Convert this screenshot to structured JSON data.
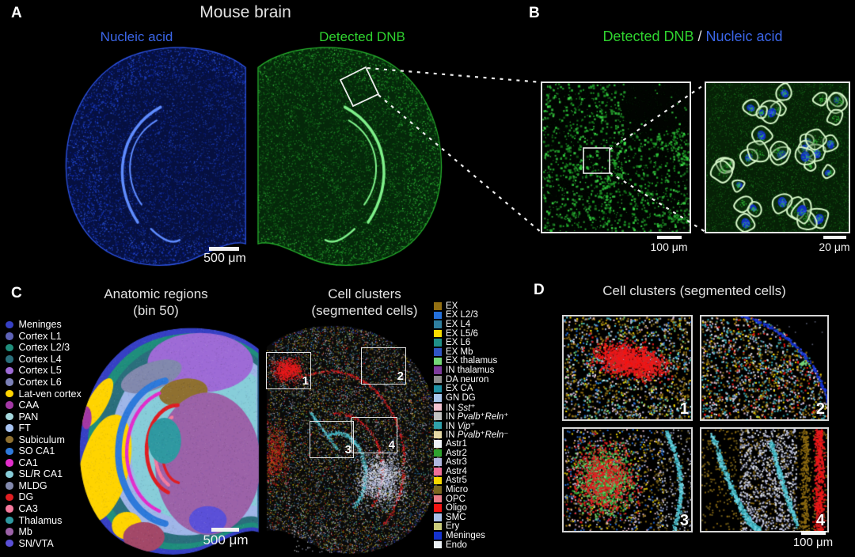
{
  "figure": {
    "background": "#000000"
  },
  "panels": {
    "a": {
      "label": "A",
      "title": "Mouse brain",
      "stain_left": "Nucleic acid",
      "stain_right": "Detected DNB",
      "scale_bar": "500 μm",
      "colors": {
        "nucleic_acid_label": "#3B66E8",
        "detected_dnb_label": "#2FD32F"
      }
    },
    "b": {
      "label": "B",
      "title_parts": {
        "green": "Detected DNB",
        "separator": " / ",
        "blue": "Nucleic acid"
      },
      "scale_bar_left": "100 μm",
      "scale_bar_right": "20 μm"
    },
    "c": {
      "label": "C",
      "left_title": "Anatomic regions",
      "left_subtitle": "(bin 50)",
      "right_title": "Cell clusters",
      "right_subtitle": "(segmented cells)",
      "scale_bar": "500 μm",
      "roi_labels": [
        "1",
        "2",
        "3",
        "4"
      ],
      "anatomic_legend": [
        {
          "label": "Meninges",
          "color": "#3640C4"
        },
        {
          "label": "Cortex L1",
          "color": "#5E63B8"
        },
        {
          "label": "Cortex L2/3",
          "color": "#1F8E7C"
        },
        {
          "label": "Cortex L4",
          "color": "#2A6F7C"
        },
        {
          "label": "Cortex L5",
          "color": "#9E6BD6"
        },
        {
          "label": "Cortex L6",
          "color": "#7B80B8"
        },
        {
          "label": "Lat-ven cortex",
          "color": "#FFD400"
        },
        {
          "label": "CAA",
          "color": "#A338A5"
        },
        {
          "label": "PAN",
          "color": "#A5D8DE"
        },
        {
          "label": "FT",
          "color": "#A8C4F2"
        },
        {
          "label": "Subiculum",
          "color": "#8F7030"
        },
        {
          "label": "SO CA1",
          "color": "#2E7ADB"
        },
        {
          "label": "CA1",
          "color": "#E32ECC"
        },
        {
          "label": "SL/R CA1",
          "color": "#87CDD9"
        },
        {
          "label": "MLDG",
          "color": "#8289AD"
        },
        {
          "label": "DG",
          "color": "#E01E22"
        },
        {
          "label": "CA3",
          "color": "#F57A9E"
        },
        {
          "label": "Thalamus",
          "color": "#2F99A1"
        },
        {
          "label": "Mb",
          "color": "#9C62A8"
        },
        {
          "label": "SN/VTA",
          "color": "#5B50D8"
        }
      ],
      "cluster_legend": [
        {
          "label": "EX",
          "color": "#926F12"
        },
        {
          "label": "EX L2/3",
          "color": "#2470DB"
        },
        {
          "label": "EX L4",
          "color": "#2F7E9E"
        },
        {
          "label": "EX L5/6",
          "color": "#F7DC00"
        },
        {
          "label": "EX L6",
          "color": "#1F8F87"
        },
        {
          "label": "EX Mb",
          "color": "#3055C4"
        },
        {
          "label": "EX thalamus",
          "color": "#74D678"
        },
        {
          "label": "IN thalamus",
          "color": "#7D3B9C"
        },
        {
          "label": "DA neuron",
          "color": "#8E8E8E"
        },
        {
          "label": "EX CA",
          "color": "#1F8FA3"
        },
        {
          "label": "GN DG",
          "color": "#A8C6ED"
        },
        {
          "label": "IN Sst⁺",
          "color": "#F4C4D1"
        },
        {
          "label": "IN Pvalb⁺Reln⁺",
          "color": "#C2C2C2"
        },
        {
          "label": "IN Vip⁺",
          "color": "#2FA0AB"
        },
        {
          "label": "IN Pvalb⁺Reln⁻",
          "color": "#E5D9A6"
        },
        {
          "label": "Astr1",
          "color": "#EFF3F8"
        },
        {
          "label": "Astr2",
          "color": "#2EA32E"
        },
        {
          "label": "Astr3",
          "color": "#B0B7DE"
        },
        {
          "label": "Astr4",
          "color": "#EF7098"
        },
        {
          "label": "Astr5",
          "color": "#F8D800"
        },
        {
          "label": "Micro",
          "color": "#7C6820"
        },
        {
          "label": "OPC",
          "color": "#EA7C87"
        },
        {
          "label": "Oligo",
          "color": "#F51412"
        },
        {
          "label": "SMC",
          "color": "#AAC0EA"
        },
        {
          "label": "Ery",
          "color": "#CACB7C"
        },
        {
          "label": "Meninges",
          "color": "#1532CE"
        },
        {
          "label": "Endo",
          "color": "#EAEFF4"
        }
      ]
    },
    "d": {
      "label": "D",
      "title": "Cell clusters (segmented cells)",
      "scale_bar": "100 μm",
      "tile_labels": [
        "1",
        "2",
        "3",
        "4"
      ]
    }
  }
}
